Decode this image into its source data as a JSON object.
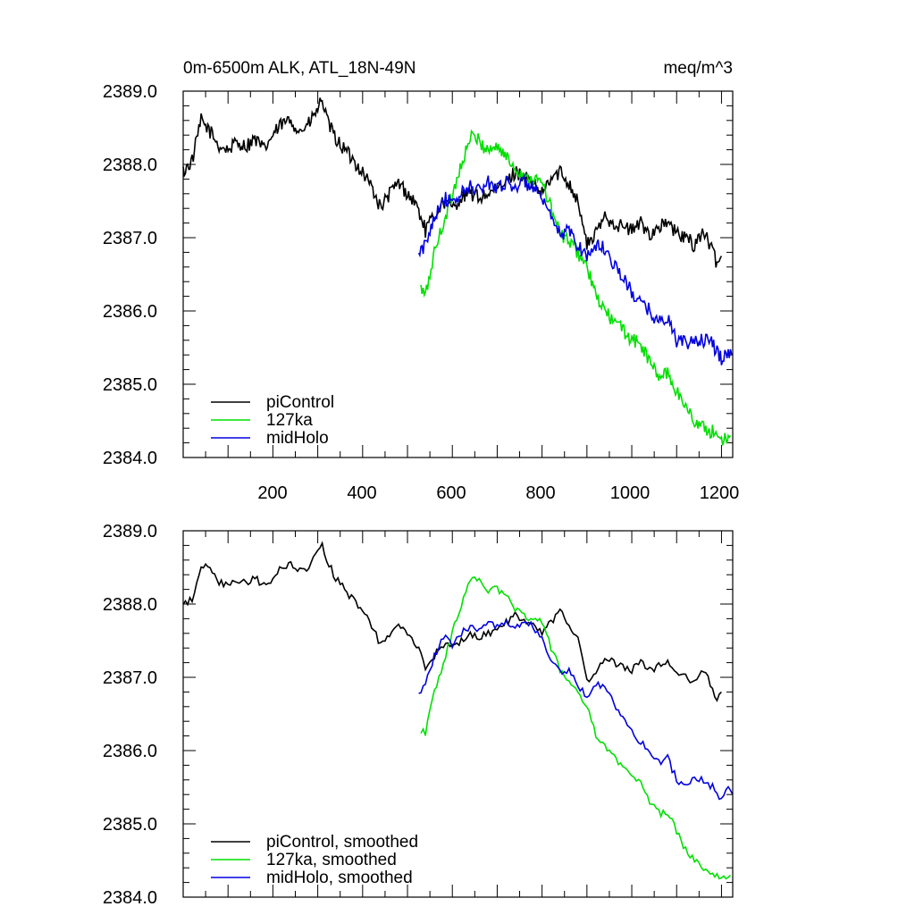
{
  "chart_data": [
    {
      "type": "line",
      "title_left": "0m-6500m ALK, ATL_18N-49N",
      "title_right": "meq/m^3",
      "xlabel": "",
      "ylabel": "",
      "xlim": [
        0,
        1225
      ],
      "ylim": [
        2384.0,
        2389.0
      ],
      "x_tick_labels": [
        "200",
        "400",
        "600",
        "800",
        "1000",
        "1200"
      ],
      "y_tick_labels": [
        "2389.0",
        "2388.0",
        "2387.0",
        "2386.0",
        "2385.0",
        "2384.0"
      ],
      "grid": false,
      "legend_position": "bottom-left",
      "series": [
        {
          "name": "piControl",
          "color": "#000000",
          "x": [
            0,
            20,
            40,
            60,
            80,
            100,
            120,
            140,
            160,
            180,
            200,
            220,
            240,
            260,
            280,
            300,
            310,
            320,
            340,
            360,
            380,
            400,
            420,
            440,
            460,
            480,
            500,
            520,
            540,
            560,
            580,
            600,
            620,
            640,
            660,
            680,
            700,
            720,
            740,
            760,
            780,
            800,
            820,
            840,
            860,
            880,
            900,
            920,
            940,
            960,
            980,
            1000,
            1020,
            1040,
            1060,
            1080,
            1100,
            1120,
            1140,
            1160,
            1180,
            1190,
            1200
          ],
          "values": [
            2387.9,
            2388.05,
            2388.6,
            2388.45,
            2388.25,
            2388.2,
            2388.3,
            2388.25,
            2388.35,
            2388.2,
            2388.4,
            2388.55,
            2388.6,
            2388.45,
            2388.55,
            2388.75,
            2388.9,
            2388.6,
            2388.35,
            2388.2,
            2388.05,
            2387.9,
            2387.7,
            2387.4,
            2387.6,
            2387.75,
            2387.6,
            2387.45,
            2387.1,
            2387.3,
            2387.5,
            2387.4,
            2387.55,
            2387.6,
            2387.55,
            2387.6,
            2387.65,
            2387.75,
            2387.9,
            2387.85,
            2387.7,
            2387.6,
            2387.8,
            2387.9,
            2387.75,
            2387.5,
            2386.9,
            2387.05,
            2387.3,
            2387.2,
            2387.15,
            2387.1,
            2387.2,
            2387.05,
            2387.15,
            2387.2,
            2387.05,
            2387.0,
            2386.9,
            2387.1,
            2386.8,
            2386.65,
            2386.75
          ]
        },
        {
          "name": "127ka",
          "color": "#00e000",
          "x": [
            530,
            540,
            560,
            580,
            600,
            620,
            640,
            650,
            660,
            680,
            700,
            720,
            740,
            760,
            780,
            800,
            820,
            840,
            860,
            880,
            900,
            920,
            940,
            960,
            980,
            1000,
            1020,
            1040,
            1060,
            1080,
            1100,
            1120,
            1140,
            1160,
            1180,
            1200,
            1220
          ],
          "values": [
            2386.3,
            2386.2,
            2386.8,
            2387.2,
            2387.6,
            2388.0,
            2388.35,
            2388.4,
            2388.3,
            2388.2,
            2388.25,
            2388.1,
            2387.95,
            2387.85,
            2387.8,
            2387.75,
            2387.4,
            2387.05,
            2386.95,
            2386.8,
            2386.6,
            2386.2,
            2386.0,
            2385.85,
            2385.75,
            2385.6,
            2385.55,
            2385.3,
            2385.1,
            2385.15,
            2384.9,
            2384.7,
            2384.5,
            2384.4,
            2384.35,
            2384.25,
            2384.3
          ]
        },
        {
          "name": "midHolo",
          "color": "#0000e0",
          "x": [
            525,
            540,
            560,
            580,
            600,
            620,
            640,
            660,
            680,
            700,
            720,
            740,
            760,
            780,
            800,
            820,
            840,
            860,
            880,
            900,
            920,
            940,
            960,
            980,
            1000,
            1020,
            1040,
            1060,
            1080,
            1100,
            1120,
            1140,
            1160,
            1180,
            1200,
            1215,
            1225
          ],
          "values": [
            2386.75,
            2386.9,
            2387.3,
            2387.55,
            2387.45,
            2387.6,
            2387.7,
            2387.65,
            2387.75,
            2387.7,
            2387.75,
            2387.7,
            2387.75,
            2387.7,
            2387.5,
            2387.25,
            2387.05,
            2387.1,
            2386.9,
            2386.75,
            2386.9,
            2386.85,
            2386.65,
            2386.45,
            2386.25,
            2386.1,
            2386.0,
            2385.85,
            2385.9,
            2385.6,
            2385.55,
            2385.6,
            2385.6,
            2385.55,
            2385.35,
            2385.45,
            2385.4
          ]
        }
      ]
    },
    {
      "type": "line",
      "title_left": "",
      "title_right": "",
      "xlabel": "",
      "ylabel": "",
      "xlim": [
        0,
        1225
      ],
      "ylim": [
        2384.0,
        2389.0
      ],
      "x_tick_labels": [],
      "y_tick_labels": [
        "2389.0",
        "2388.0",
        "2387.0",
        "2386.0",
        "2385.0",
        "2384.0"
      ],
      "grid": false,
      "legend_position": "bottom-left",
      "series": [
        {
          "name": "piControl, smoothed",
          "color": "#000000",
          "x": [
            0,
            20,
            40,
            60,
            80,
            100,
            120,
            140,
            160,
            180,
            200,
            220,
            240,
            260,
            280,
            300,
            310,
            320,
            340,
            360,
            380,
            400,
            420,
            440,
            460,
            480,
            500,
            520,
            540,
            560,
            580,
            600,
            620,
            640,
            660,
            680,
            700,
            720,
            740,
            760,
            780,
            800,
            820,
            840,
            860,
            880,
            900,
            920,
            940,
            960,
            980,
            1000,
            1020,
            1040,
            1060,
            1080,
            1100,
            1120,
            1140,
            1160,
            1180,
            1190,
            1200
          ],
          "values": [
            2388.0,
            2388.05,
            2388.55,
            2388.45,
            2388.3,
            2388.25,
            2388.3,
            2388.3,
            2388.35,
            2388.25,
            2388.35,
            2388.5,
            2388.55,
            2388.45,
            2388.5,
            2388.7,
            2388.85,
            2388.6,
            2388.35,
            2388.2,
            2388.05,
            2387.9,
            2387.7,
            2387.45,
            2387.55,
            2387.7,
            2387.6,
            2387.45,
            2387.15,
            2387.3,
            2387.45,
            2387.4,
            2387.5,
            2387.6,
            2387.55,
            2387.6,
            2387.65,
            2387.75,
            2387.85,
            2387.8,
            2387.7,
            2387.6,
            2387.75,
            2387.9,
            2387.75,
            2387.5,
            2386.95,
            2387.05,
            2387.25,
            2387.2,
            2387.15,
            2387.1,
            2387.2,
            2387.1,
            2387.15,
            2387.2,
            2387.05,
            2387.0,
            2386.95,
            2387.1,
            2386.85,
            2386.7,
            2386.8
          ]
        },
        {
          "name": "127ka, smoothed",
          "color": "#00e000",
          "x": [
            530,
            540,
            560,
            580,
            600,
            620,
            640,
            650,
            660,
            680,
            700,
            720,
            740,
            760,
            780,
            800,
            820,
            840,
            860,
            880,
            900,
            920,
            940,
            960,
            980,
            1000,
            1020,
            1040,
            1060,
            1080,
            1100,
            1120,
            1140,
            1160,
            1180,
            1200,
            1220
          ],
          "values": [
            2386.25,
            2386.25,
            2386.8,
            2387.2,
            2387.6,
            2388.0,
            2388.3,
            2388.4,
            2388.3,
            2388.2,
            2388.2,
            2388.1,
            2387.95,
            2387.85,
            2387.8,
            2387.75,
            2387.4,
            2387.1,
            2386.95,
            2386.8,
            2386.6,
            2386.2,
            2386.05,
            2385.9,
            2385.8,
            2385.65,
            2385.6,
            2385.3,
            2385.15,
            2385.15,
            2384.9,
            2384.65,
            2384.5,
            2384.4,
            2384.35,
            2384.25,
            2384.3
          ]
        },
        {
          "name": "midHolo, smoothed",
          "color": "#0000e0",
          "x": [
            525,
            540,
            560,
            580,
            600,
            620,
            640,
            660,
            680,
            700,
            720,
            740,
            760,
            780,
            800,
            820,
            840,
            860,
            880,
            900,
            920,
            940,
            960,
            980,
            1000,
            1020,
            1040,
            1060,
            1080,
            1100,
            1120,
            1140,
            1160,
            1180,
            1200,
            1215,
            1225
          ],
          "values": [
            2386.8,
            2386.9,
            2387.3,
            2387.55,
            2387.45,
            2387.6,
            2387.7,
            2387.65,
            2387.75,
            2387.7,
            2387.75,
            2387.7,
            2387.75,
            2387.7,
            2387.5,
            2387.25,
            2387.05,
            2387.1,
            2386.9,
            2386.75,
            2386.9,
            2386.85,
            2386.65,
            2386.45,
            2386.25,
            2386.1,
            2386.0,
            2385.85,
            2385.9,
            2385.6,
            2385.55,
            2385.6,
            2385.6,
            2385.5,
            2385.3,
            2385.5,
            2385.4
          ]
        }
      ]
    }
  ]
}
